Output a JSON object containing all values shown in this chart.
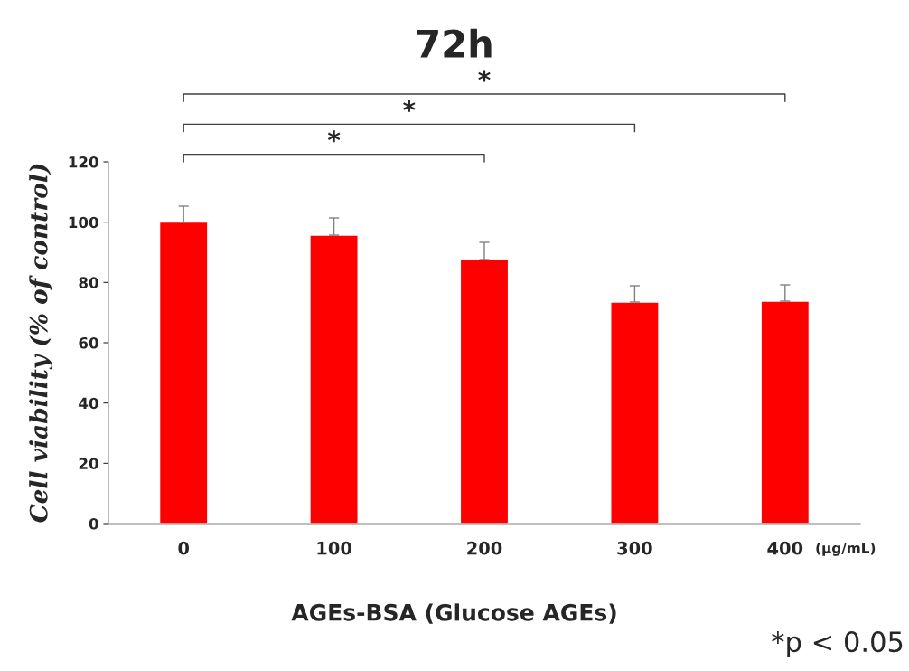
{
  "chart_data": {
    "type": "bar",
    "title": "72h",
    "xlabel": "AGEs-BSA (Glucose AGEs)",
    "ylabel": "Cell viability (% of control)",
    "categories": [
      "0",
      "100",
      "200",
      "300",
      "400"
    ],
    "values": [
      100,
      95.7,
      87.6,
      73.5,
      73.8
    ],
    "errors": [
      [
        100,
        105.3
      ],
      [
        95.7,
        101.4
      ],
      [
        87.6,
        93.3
      ],
      [
        73.5,
        78.9
      ],
      [
        73.8,
        79.2
      ]
    ],
    "color": "#ff0000",
    "ylim": [
      0,
      120
    ],
    "yticks": [
      0,
      20,
      40,
      60,
      80,
      100,
      120
    ],
    "grid": false,
    "legend": false,
    "annotations": [
      "*",
      "*",
      "*",
      "(μg/mL)",
      "*p < 0.05"
    ]
  }
}
